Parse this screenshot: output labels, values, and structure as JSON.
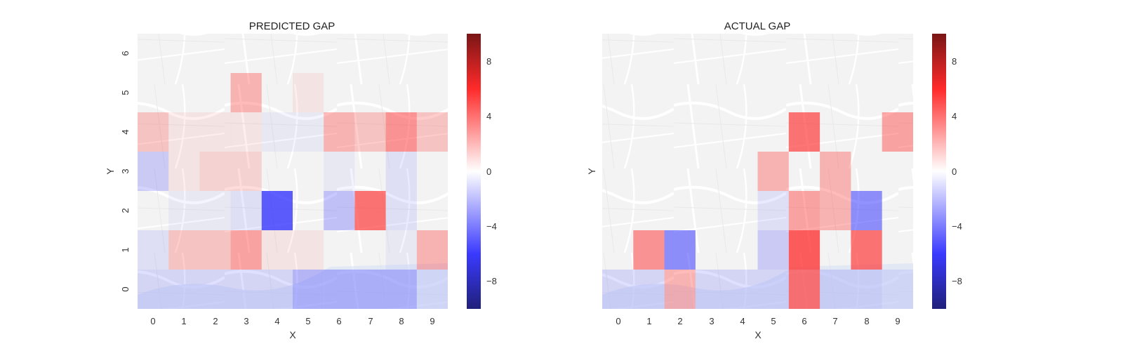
{
  "chart_data": [
    {
      "type": "heatmap",
      "title": "PREDICTED GAP",
      "xlabel": "X",
      "ylabel": "Y",
      "x_ticks": [
        "0",
        "1",
        "2",
        "3",
        "4",
        "5",
        "6",
        "7",
        "8",
        "9"
      ],
      "y_ticks": [
        "0",
        "1",
        "2",
        "3",
        "4",
        "5",
        "6"
      ],
      "colorbar_ticks": [
        8,
        4,
        0,
        -4,
        -8
      ],
      "colorbar_labels": [
        "8",
        "4",
        "0",
        "−4",
        "−8"
      ],
      "vmin": -10,
      "vmax": 10,
      "colormap": [
        "#3a3aff",
        "#ffffff",
        "#ff2a2a"
      ],
      "background": "map",
      "values": [
        [
          -1.5,
          -1.5,
          -1.5,
          -1.5,
          -1.5,
          -3,
          -3,
          -3,
          -3,
          -1
        ],
        [
          -1,
          1.5,
          1.5,
          2.5,
          0.5,
          0.5,
          0,
          0,
          -0.5,
          2
        ],
        [
          0,
          -0.5,
          -0.5,
          -1,
          -8,
          0,
          -2.5,
          4,
          -1,
          0
        ],
        [
          -2,
          0.5,
          1,
          1,
          0,
          0,
          -0.5,
          0,
          -1,
          0
        ],
        [
          1.5,
          0.5,
          0.5,
          0.5,
          -0.5,
          -0.5,
          2,
          1.5,
          3,
          1.5
        ],
        [
          0,
          0,
          0,
          2,
          0,
          0.5,
          0,
          0,
          0,
          0
        ],
        [
          0,
          0,
          0,
          0,
          0,
          0,
          0,
          0,
          0,
          0
        ]
      ]
    },
    {
      "type": "heatmap",
      "title": "ACTUAL GAP",
      "xlabel": "X",
      "ylabel": "Y",
      "x_ticks": [
        "0",
        "1",
        "2",
        "3",
        "4",
        "5",
        "6",
        "7",
        "8",
        "9"
      ],
      "y_ticks": [
        "0",
        "1",
        "2",
        "3",
        "4",
        "5",
        "6"
      ],
      "colorbar_ticks": [
        8,
        4,
        0,
        -4,
        -8
      ],
      "colorbar_labels": [
        "8",
        "4",
        "0",
        "−4",
        "−8"
      ],
      "vmin": -10,
      "vmax": 10,
      "colormap": [
        "#3a3aff",
        "#ffffff",
        "#ff2a2a"
      ],
      "background": "map",
      "values": [
        [
          -1.5,
          -1.5,
          2,
          -1.5,
          -1.5,
          -1.5,
          4,
          -1.5,
          -1.5,
          -1
        ],
        [
          0,
          3,
          -5,
          0,
          0,
          -2,
          6,
          0,
          4,
          0
        ],
        [
          0,
          0,
          0,
          0,
          0,
          -1,
          2.5,
          2,
          -5,
          0
        ],
        [
          0,
          0,
          0,
          0,
          0,
          2,
          0,
          2,
          0,
          0
        ],
        [
          0,
          0,
          0,
          0,
          0,
          0,
          4,
          0,
          0,
          2.5
        ],
        [
          0,
          0,
          0,
          0,
          0,
          0,
          0,
          0,
          0,
          0
        ],
        [
          0,
          0,
          0,
          0,
          0,
          0,
          0,
          0,
          0,
          0
        ]
      ]
    }
  ]
}
